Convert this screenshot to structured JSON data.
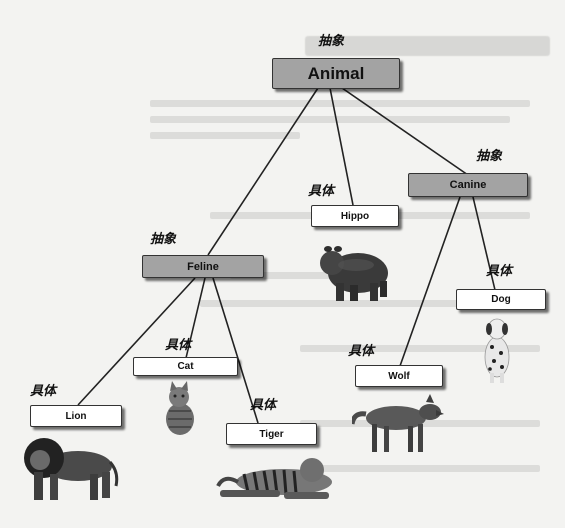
{
  "labels": {
    "abstract_tag": "抽象",
    "concrete_tag": "具体"
  },
  "nodes": {
    "animal": "Animal",
    "feline": "Feline",
    "canine": "Canine",
    "hippo": "Hippo",
    "lion": "Lion",
    "cat": "Cat",
    "tiger": "Tiger",
    "wolf": "Wolf",
    "dog": "Dog"
  },
  "colors": {
    "abstract_fill": "#a3a3a3",
    "concrete_fill": "#ffffff",
    "edge": "#222222"
  }
}
